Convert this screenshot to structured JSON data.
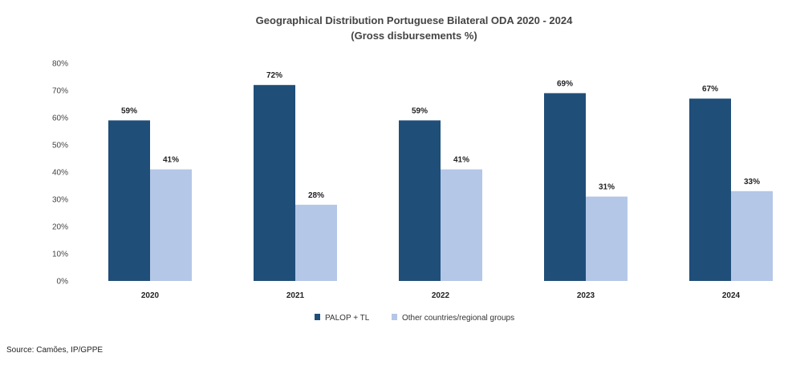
{
  "chart_data": {
    "type": "bar",
    "title": "Geographical Distribution Portuguese Bilateral ODA 2020 - 2024",
    "subtitle": "(Gross disbursements %)",
    "categories": [
      "2020",
      "2021",
      "2022",
      "2023",
      "2024"
    ],
    "series": [
      {
        "name": "PALOP + TL",
        "color": "#1f4e79",
        "values": [
          59,
          72,
          59,
          69,
          67
        ]
      },
      {
        "name": "Other countries/regional groups",
        "color": "#b4c7e7",
        "values": [
          41,
          28,
          41,
          31,
          33
        ]
      }
    ],
    "ylim": [
      0,
      80
    ],
    "yticks": [
      0,
      10,
      20,
      30,
      40,
      50,
      60,
      70,
      80
    ],
    "ytick_suffix": "%",
    "data_label_suffix": "%",
    "grid": false,
    "legend_position": "bottom-center"
  },
  "source": "Source: Camões, IP/GPPE"
}
